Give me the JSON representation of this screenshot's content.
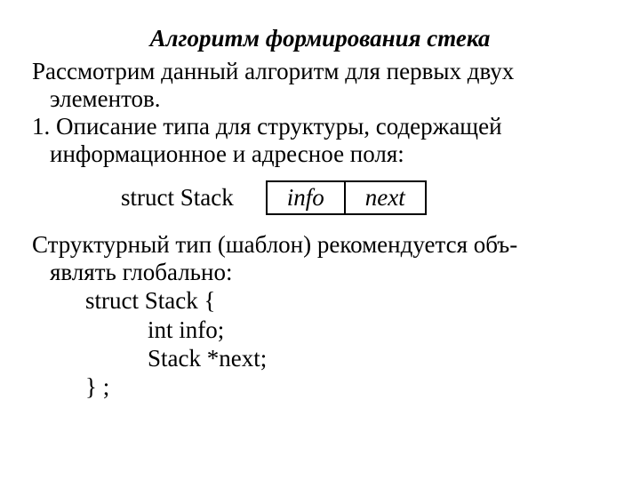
{
  "title": "Алгоритм формирования  стека",
  "para1_line1": "Рассмотрим данный алгоритм для первых двух",
  "para1_line2": "элементов.",
  "para2_line1": "1. Описание типа для структуры, содержащей",
  "para2_line2": "информационное и адресное поля:",
  "struct_label": "struct  Stack",
  "cell_info": "info",
  "cell_next": "next",
  "para3_line1": "Структурный тип (шаблон) рекомендуется объ-",
  "para3_line2": "являть глобально:",
  "code_l1": "struct   Stack {",
  "code_l2": "int  info;",
  "code_l3": "Stack   *next;",
  "code_l4": "} ;",
  "colors": {
    "text": "#000000",
    "background": "#ffffff",
    "border": "#000000"
  },
  "fontsize_pt": 20,
  "font_family": "Times New Roman"
}
